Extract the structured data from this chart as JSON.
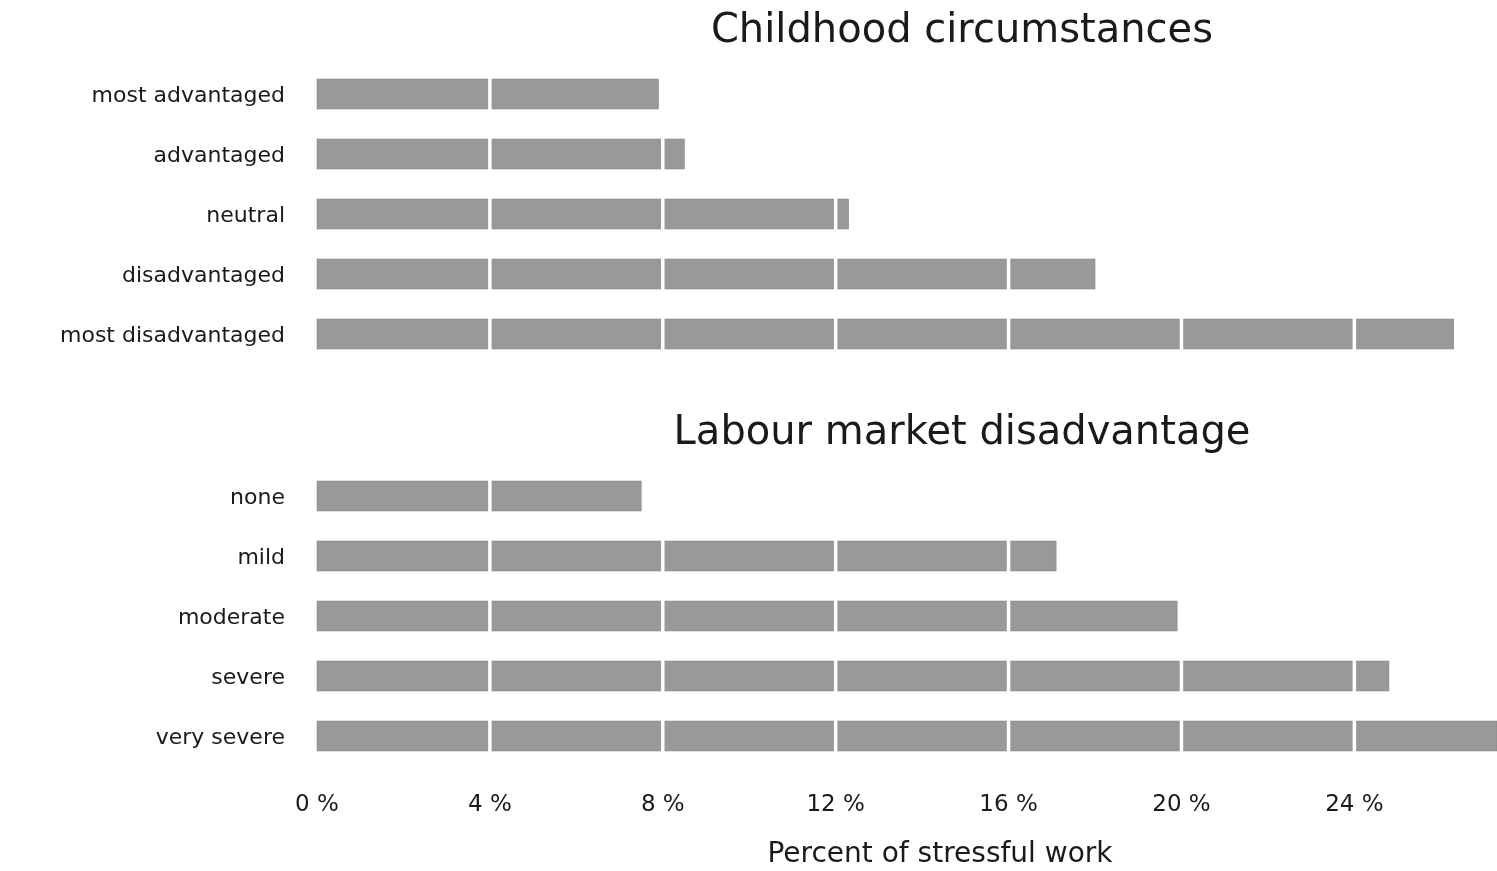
{
  "chart_data": [
    {
      "type": "bar",
      "orientation": "horizontal",
      "title": "Childhood circumstances",
      "categories": [
        "most advantaged",
        "advantaged",
        "neutral",
        "disadvantaged",
        "most disadvantaged"
      ],
      "values": [
        7.9,
        8.5,
        12.3,
        18.0,
        26.3
      ],
      "color": "#999999",
      "xlim": [
        0,
        27.3
      ],
      "xticks": [
        0,
        4,
        8,
        12,
        16,
        20,
        24
      ],
      "grid": "x",
      "tick_labels": "y"
    },
    {
      "type": "bar",
      "orientation": "horizontal",
      "title": "Labour market disadvantage",
      "xlabel": "Percent of stressful work",
      "categories": [
        "none",
        "mild",
        "moderate",
        "severe",
        "very severe"
      ],
      "values": [
        7.5,
        17.1,
        19.9,
        24.8,
        27.3
      ],
      "color": "#999999",
      "xlim": [
        0,
        27.3
      ],
      "xticks": [
        {
          "value": 0,
          "label": "0 %"
        },
        {
          "value": 4,
          "label": "4 %"
        },
        {
          "value": 8,
          "label": "8 %"
        },
        {
          "value": 12,
          "label": "12 %"
        },
        {
          "value": 16,
          "label": "16 %"
        },
        {
          "value": 20,
          "label": "20 %"
        },
        {
          "value": 24,
          "label": "24 %"
        }
      ],
      "grid": "x"
    }
  ]
}
